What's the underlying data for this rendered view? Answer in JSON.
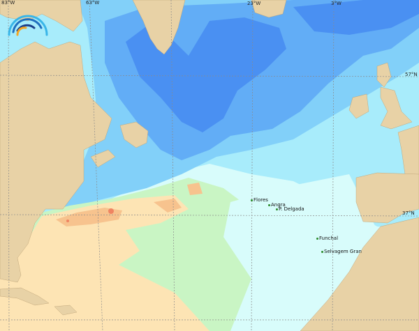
{
  "map": {
    "graticule": {
      "longitude_labels": [
        "83°W",
        "63°W",
        "23°W",
        "3°W"
      ],
      "latitude_labels": [
        "57°N",
        "37°N"
      ]
    },
    "places": [
      {
        "name": "Flores"
      },
      {
        "name": "Angra"
      },
      {
        "name": "P. Delgada"
      },
      {
        "name": "Funchal"
      },
      {
        "name": "Selvagem Gran"
      }
    ],
    "colors": {
      "land": "#e8d2a6",
      "deep_blue": "#4a90f2",
      "blue": "#62adf6",
      "light_blue": "#82d0f9",
      "cyan": "#a8ecfb",
      "pale_cyan": "#d8fcfb",
      "light_green": "#c9f5c4",
      "peach": "#fde4b4",
      "orange": "#f7c38e",
      "red": "#ef8462"
    },
    "logo": {
      "icon": "wave-arcs-logo"
    }
  }
}
